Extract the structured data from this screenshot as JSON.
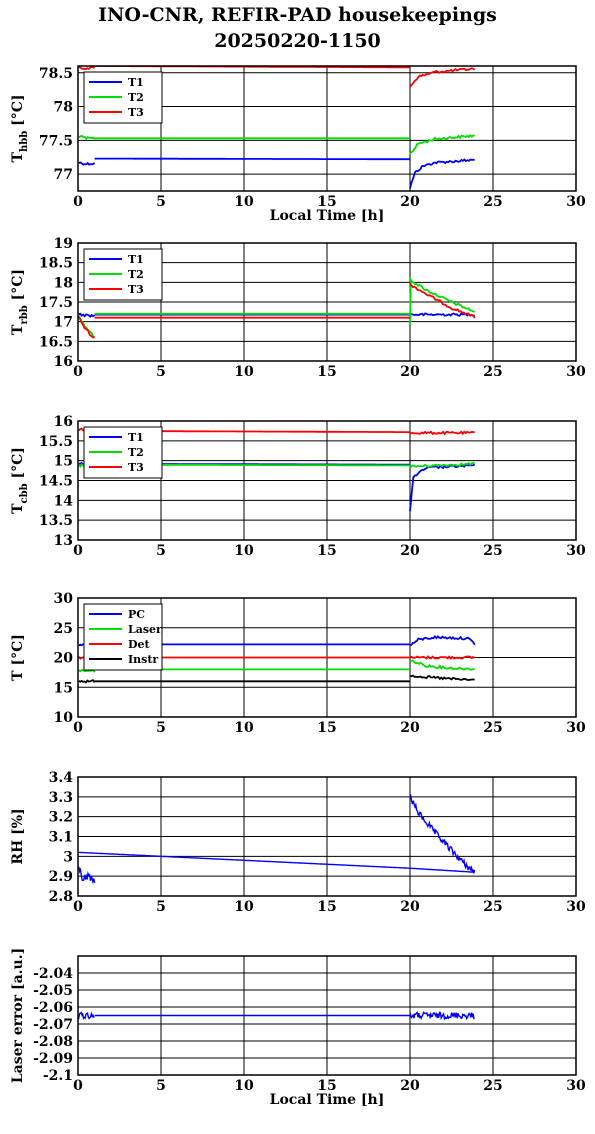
{
  "title_line1": "INO-CNR, REFIR-PAD housekeepings",
  "title_line2": "20250220-1150",
  "chart_data": [
    {
      "type": "line",
      "ylabel": {
        "main": "T",
        "sub": "hbb",
        "unit": " [°C]"
      },
      "xlabel": "Local Time [h]",
      "xlim": [
        0,
        30
      ],
      "ylim": [
        76.75,
        78.6
      ],
      "xticks": [
        0,
        5,
        10,
        15,
        20,
        25,
        30
      ],
      "yticks": [
        77,
        77.5,
        78,
        78.5
      ],
      "grid": true,
      "legend": "top-left",
      "series": [
        {
          "name": "T1",
          "color": "#0000ff",
          "segments": [
            [
              [
                0.05,
                77.17
              ],
              [
                0.5,
                77.15
              ],
              [
                1.0,
                77.16
              ]
            ],
            [
              [
                1.0,
                77.23
              ],
              [
                20.0,
                77.22
              ]
            ],
            [
              [
                20.0,
                76.8
              ],
              [
                20.3,
                77.02
              ],
              [
                20.8,
                77.12
              ],
              [
                21.5,
                77.17
              ],
              [
                23.9,
                77.21
              ]
            ]
          ]
        },
        {
          "name": "T2",
          "color": "#00dd00",
          "segments": [
            [
              [
                0.05,
                77.56
              ],
              [
                0.5,
                77.53
              ],
              [
                1.0,
                77.53
              ]
            ],
            [
              [
                1.0,
                77.53
              ],
              [
                20.0,
                77.53
              ]
            ],
            [
              [
                20.0,
                77.3
              ],
              [
                20.5,
                77.45
              ],
              [
                21.5,
                77.52
              ],
              [
                23.9,
                77.57
              ]
            ]
          ]
        },
        {
          "name": "T3",
          "color": "#ff0000",
          "segments": [
            [
              [
                0.05,
                78.57
              ],
              [
                1.0,
                78.57
              ]
            ],
            [
              [
                1.0,
                78.6
              ],
              [
                20.0,
                78.58
              ]
            ],
            [
              [
                20.0,
                78.3
              ],
              [
                20.5,
                78.44
              ],
              [
                21.5,
                78.51
              ],
              [
                23.9,
                78.56
              ]
            ]
          ]
        }
      ]
    },
    {
      "type": "line",
      "ylabel": {
        "main": "T",
        "sub": "rbb",
        "unit": " [°C]"
      },
      "xlabel": "",
      "xlim": [
        0,
        30
      ],
      "ylim": [
        16,
        19
      ],
      "xticks": [
        0,
        5,
        10,
        15,
        20,
        25,
        30
      ],
      "yticks": [
        16,
        16.5,
        17,
        17.5,
        18,
        18.5,
        19
      ],
      "grid": true,
      "legend": "top-left",
      "series": [
        {
          "name": "T1",
          "color": "#0000ff",
          "segments": [
            [
              [
                0.05,
                17.18
              ],
              [
                1.0,
                17.15
              ]
            ],
            [
              [
                1.0,
                17.18
              ],
              [
                20.0,
                17.18
              ]
            ],
            [
              [
                20.0,
                17.18
              ],
              [
                23.9,
                17.18
              ]
            ]
          ]
        },
        {
          "name": "T2",
          "color": "#00dd00",
          "segments": [
            [
              [
                0.05,
                17.15
              ],
              [
                0.4,
                16.9
              ],
              [
                0.8,
                16.7
              ],
              [
                1.0,
                16.62
              ]
            ],
            [
              [
                1.0,
                17.2
              ],
              [
                20.0,
                17.2
              ]
            ],
            [
              [
                20.0,
                16.9
              ],
              [
                20.05,
                18.05
              ],
              [
                21.0,
                17.8
              ],
              [
                22.5,
                17.5
              ],
              [
                23.9,
                17.25
              ]
            ]
          ]
        },
        {
          "name": "T3",
          "color": "#ff0000",
          "segments": [
            [
              [
                0.05,
                17.1
              ],
              [
                0.4,
                16.85
              ],
              [
                0.8,
                16.65
              ],
              [
                1.0,
                16.58
              ]
            ],
            [
              [
                1.0,
                17.1
              ],
              [
                20.0,
                17.1
              ]
            ],
            [
              [
                20.0,
                17.95
              ],
              [
                21.0,
                17.7
              ],
              [
                22.5,
                17.35
              ],
              [
                23.9,
                17.12
              ]
            ]
          ]
        }
      ]
    },
    {
      "type": "line",
      "ylabel": {
        "main": "T",
        "sub": "cbb",
        "unit": " [°C]"
      },
      "xlabel": "",
      "xlim": [
        0,
        30
      ],
      "ylim": [
        13,
        16
      ],
      "xticks": [
        0,
        5,
        10,
        15,
        20,
        25,
        30
      ],
      "yticks": [
        13,
        13.5,
        14,
        14.5,
        15,
        15.5,
        16
      ],
      "grid": true,
      "legend": "top-left",
      "series": [
        {
          "name": "T1",
          "color": "#0000ff",
          "segments": [
            [
              [
                0.05,
                14.92
              ],
              [
                1.0,
                14.92
              ]
            ],
            [
              [
                1.0,
                14.92
              ],
              [
                20.0,
                14.9
              ]
            ],
            [
              [
                20.0,
                13.7
              ],
              [
                20.2,
                14.6
              ],
              [
                21.0,
                14.82
              ],
              [
                23.9,
                14.88
              ]
            ]
          ]
        },
        {
          "name": "T2",
          "color": "#00dd00",
          "segments": [
            [
              [
                0.05,
                14.88
              ],
              [
                1.0,
                14.88
              ]
            ],
            [
              [
                1.0,
                14.9
              ],
              [
                20.0,
                14.88
              ]
            ],
            [
              [
                20.0,
                14.85
              ],
              [
                21.0,
                14.87
              ],
              [
                23.9,
                14.92
              ]
            ]
          ]
        },
        {
          "name": "T3",
          "color": "#ff0000",
          "segments": [
            [
              [
                0.05,
                15.78
              ],
              [
                1.0,
                15.77
              ]
            ],
            [
              [
                1.0,
                15.75
              ],
              [
                20.0,
                15.72
              ]
            ],
            [
              [
                20.0,
                15.7
              ],
              [
                23.9,
                15.7
              ]
            ]
          ]
        }
      ]
    },
    {
      "type": "line",
      "ylabel": {
        "main": "T",
        "sub": "",
        "unit": " [°C]"
      },
      "xlabel": "",
      "xlim": [
        0,
        30
      ],
      "ylim": [
        10,
        30
      ],
      "xticks": [
        0,
        5,
        10,
        15,
        20,
        25,
        30
      ],
      "yticks": [
        10,
        15,
        20,
        25,
        30
      ],
      "grid": true,
      "legend": "top-left",
      "series": [
        {
          "name": "PC",
          "color": "#0000ff",
          "segments": [
            [
              [
                0.05,
                22.2
              ],
              [
                1.0,
                22.2
              ]
            ],
            [
              [
                1.0,
                22.2
              ],
              [
                20.0,
                22.2
              ]
            ],
            [
              [
                20.0,
                22.0
              ],
              [
                20.5,
                23.0
              ],
              [
                21.5,
                23.4
              ],
              [
                23.5,
                23.2
              ],
              [
                23.9,
                22.3
              ]
            ]
          ]
        },
        {
          "name": "Laser",
          "color": "#00dd00",
          "segments": [
            [
              [
                0.05,
                17.8
              ],
              [
                1.0,
                17.7
              ]
            ],
            [
              [
                1.0,
                18.0
              ],
              [
                20.0,
                18.0
              ]
            ],
            [
              [
                20.0,
                19.5
              ],
              [
                21.0,
                18.6
              ],
              [
                22.5,
                18.2
              ],
              [
                23.9,
                18.1
              ]
            ]
          ]
        },
        {
          "name": "Det",
          "color": "#ff0000",
          "segments": [
            [
              [
                0.05,
                20.0
              ],
              [
                1.0,
                20.0
              ]
            ],
            [
              [
                1.0,
                20.0
              ],
              [
                20.0,
                20.0
              ]
            ],
            [
              [
                20.0,
                20.0
              ],
              [
                23.9,
                20.0
              ]
            ]
          ]
        },
        {
          "name": "Instr",
          "color": "#000000",
          "segments": [
            [
              [
                0.05,
                16.0
              ],
              [
                1.0,
                16.0
              ]
            ],
            [
              [
                1.0,
                16.0
              ],
              [
                20.0,
                16.0
              ]
            ],
            [
              [
                20.0,
                17.0
              ],
              [
                21.0,
                16.7
              ],
              [
                22.5,
                16.4
              ],
              [
                23.9,
                16.2
              ]
            ]
          ]
        }
      ]
    },
    {
      "type": "line",
      "ylabel": {
        "main": "RH [%]",
        "sub": "",
        "unit": ""
      },
      "xlabel": "",
      "xlim": [
        0,
        30
      ],
      "ylim": [
        2.8,
        3.4
      ],
      "xticks": [
        0,
        5,
        10,
        15,
        20,
        25,
        30
      ],
      "yticks": [
        2.8,
        2.9,
        3,
        3.1,
        3.2,
        3.3,
        3.4
      ],
      "grid": true,
      "legend": "none",
      "series": [
        {
          "name": "",
          "color": "#0000ff",
          "noise": true,
          "segments": [
            [
              [
                0.05,
                2.95
              ],
              [
                0.3,
                2.88
              ],
              [
                0.6,
                2.9
              ],
              [
                1.0,
                2.87
              ]
            ],
            [
              [
                0.0,
                3.02
              ],
              [
                20.0,
                2.94
              ],
              [
                23.9,
                2.92
              ]
            ],
            [
              [
                20.0,
                3.3
              ],
              [
                20.5,
                3.22
              ],
              [
                21.5,
                3.12
              ],
              [
                22.5,
                3.03
              ],
              [
                23.3,
                2.96
              ],
              [
                23.9,
                2.92
              ]
            ]
          ]
        }
      ]
    },
    {
      "type": "line",
      "ylabel": {
        "main": "Laser error [a.u.]",
        "sub": "",
        "unit": ""
      },
      "xlabel": "Local Time [h]",
      "xlim": [
        0,
        30
      ],
      "ylim": [
        -2.1,
        -2.03
      ],
      "xticks": [
        0,
        5,
        10,
        15,
        20,
        25,
        30
      ],
      "yticks": [
        -2.04,
        -2.05,
        -2.06,
        -2.07,
        -2.08,
        -2.09,
        -2.1
      ],
      "grid": true,
      "legend": "none",
      "series": [
        {
          "name": "",
          "color": "#0000ff",
          "noise": true,
          "segments": [
            [
              [
                0.0,
                -2.065
              ],
              [
                1.0,
                -2.065
              ]
            ],
            [
              [
                1.0,
                -2.065
              ],
              [
                20.0,
                -2.065
              ]
            ],
            [
              [
                20.0,
                -2.065
              ],
              [
                23.9,
                -2.065
              ]
            ]
          ]
        }
      ]
    }
  ]
}
